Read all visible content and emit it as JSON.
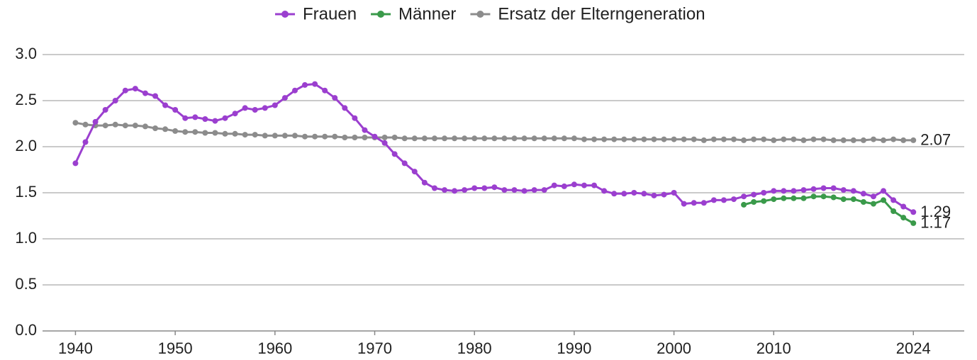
{
  "chart_data": {
    "type": "line",
    "x": [
      1940,
      1941,
      1942,
      1943,
      1944,
      1945,
      1946,
      1947,
      1948,
      1949,
      1950,
      1951,
      1952,
      1953,
      1954,
      1955,
      1956,
      1957,
      1958,
      1959,
      1960,
      1961,
      1962,
      1963,
      1964,
      1965,
      1966,
      1967,
      1968,
      1969,
      1970,
      1971,
      1972,
      1973,
      1974,
      1975,
      1976,
      1977,
      1978,
      1979,
      1980,
      1981,
      1982,
      1983,
      1984,
      1985,
      1986,
      1987,
      1988,
      1989,
      1990,
      1991,
      1992,
      1993,
      1994,
      1995,
      1996,
      1997,
      1998,
      1999,
      2000,
      2001,
      2002,
      2003,
      2004,
      2005,
      2006,
      2007,
      2008,
      2009,
      2010,
      2011,
      2012,
      2013,
      2014,
      2015,
      2016,
      2017,
      2018,
      2019,
      2020,
      2021,
      2022,
      2023,
      2024
    ],
    "series": [
      {
        "name": "Frauen",
        "color": "#9b3fcf",
        "values": [
          1.82,
          2.05,
          2.27,
          2.4,
          2.5,
          2.61,
          2.63,
          2.58,
          2.55,
          2.45,
          2.4,
          2.31,
          2.32,
          2.3,
          2.28,
          2.31,
          2.36,
          2.42,
          2.4,
          2.42,
          2.45,
          2.53,
          2.61,
          2.67,
          2.68,
          2.61,
          2.53,
          2.42,
          2.31,
          2.18,
          2.11,
          2.04,
          1.92,
          1.82,
          1.73,
          1.61,
          1.55,
          1.53,
          1.52,
          1.53,
          1.55,
          1.55,
          1.56,
          1.53,
          1.53,
          1.52,
          1.53,
          1.53,
          1.58,
          1.57,
          1.59,
          1.58,
          1.58,
          1.52,
          1.49,
          1.49,
          1.5,
          1.49,
          1.47,
          1.48,
          1.5,
          1.38,
          1.39,
          1.39,
          1.42,
          1.42,
          1.43,
          1.46,
          1.48,
          1.5,
          1.52,
          1.52,
          1.52,
          1.53,
          1.54,
          1.55,
          1.55,
          1.53,
          1.52,
          1.49,
          1.46,
          1.52,
          1.42,
          1.35,
          1.29
        ]
      },
      {
        "name": "Männer",
        "color": "#3a9a4a",
        "values": [
          null,
          null,
          null,
          null,
          null,
          null,
          null,
          null,
          null,
          null,
          null,
          null,
          null,
          null,
          null,
          null,
          null,
          null,
          null,
          null,
          null,
          null,
          null,
          null,
          null,
          null,
          null,
          null,
          null,
          null,
          null,
          null,
          null,
          null,
          null,
          null,
          null,
          null,
          null,
          null,
          null,
          null,
          null,
          null,
          null,
          null,
          null,
          null,
          null,
          null,
          null,
          null,
          null,
          null,
          null,
          null,
          null,
          null,
          null,
          null,
          null,
          null,
          null,
          null,
          null,
          null,
          null,
          1.37,
          1.4,
          1.41,
          1.43,
          1.44,
          1.44,
          1.44,
          1.46,
          1.46,
          1.45,
          1.43,
          1.43,
          1.4,
          1.38,
          1.42,
          1.3,
          1.23,
          1.17
        ]
      },
      {
        "name": "Ersatz der Elterngeneration",
        "color": "#8c8c8c",
        "values": [
          2.26,
          2.24,
          2.23,
          2.23,
          2.24,
          2.23,
          2.23,
          2.22,
          2.2,
          2.19,
          2.17,
          2.16,
          2.16,
          2.15,
          2.15,
          2.14,
          2.14,
          2.13,
          2.13,
          2.12,
          2.12,
          2.12,
          2.12,
          2.11,
          2.11,
          2.11,
          2.11,
          2.1,
          2.1,
          2.1,
          2.1,
          2.1,
          2.1,
          2.09,
          2.09,
          2.09,
          2.09,
          2.09,
          2.09,
          2.09,
          2.09,
          2.09,
          2.09,
          2.09,
          2.09,
          2.09,
          2.09,
          2.09,
          2.09,
          2.09,
          2.09,
          2.08,
          2.08,
          2.08,
          2.08,
          2.08,
          2.08,
          2.08,
          2.08,
          2.08,
          2.08,
          2.08,
          2.08,
          2.07,
          2.08,
          2.08,
          2.08,
          2.07,
          2.08,
          2.08,
          2.07,
          2.08,
          2.08,
          2.07,
          2.08,
          2.08,
          2.07,
          2.07,
          2.07,
          2.07,
          2.08,
          2.07,
          2.08,
          2.07,
          2.07
        ]
      }
    ],
    "xlim": [
      1936.7,
      2029.1
    ],
    "xticks": [
      1940,
      1950,
      1960,
      1970,
      1980,
      1990,
      2000,
      2010,
      2024
    ],
    "ylim": [
      0,
      3
    ],
    "yticks": [
      {
        "value": 0,
        "label": "0.0"
      },
      0.5,
      {
        "value": 1,
        "label": "1.0"
      },
      1.5,
      {
        "value": 2,
        "label": "2.0"
      },
      2.5,
      {
        "value": 3,
        "label": "3.0"
      }
    ],
    "grid": true,
    "legend": "top"
  }
}
